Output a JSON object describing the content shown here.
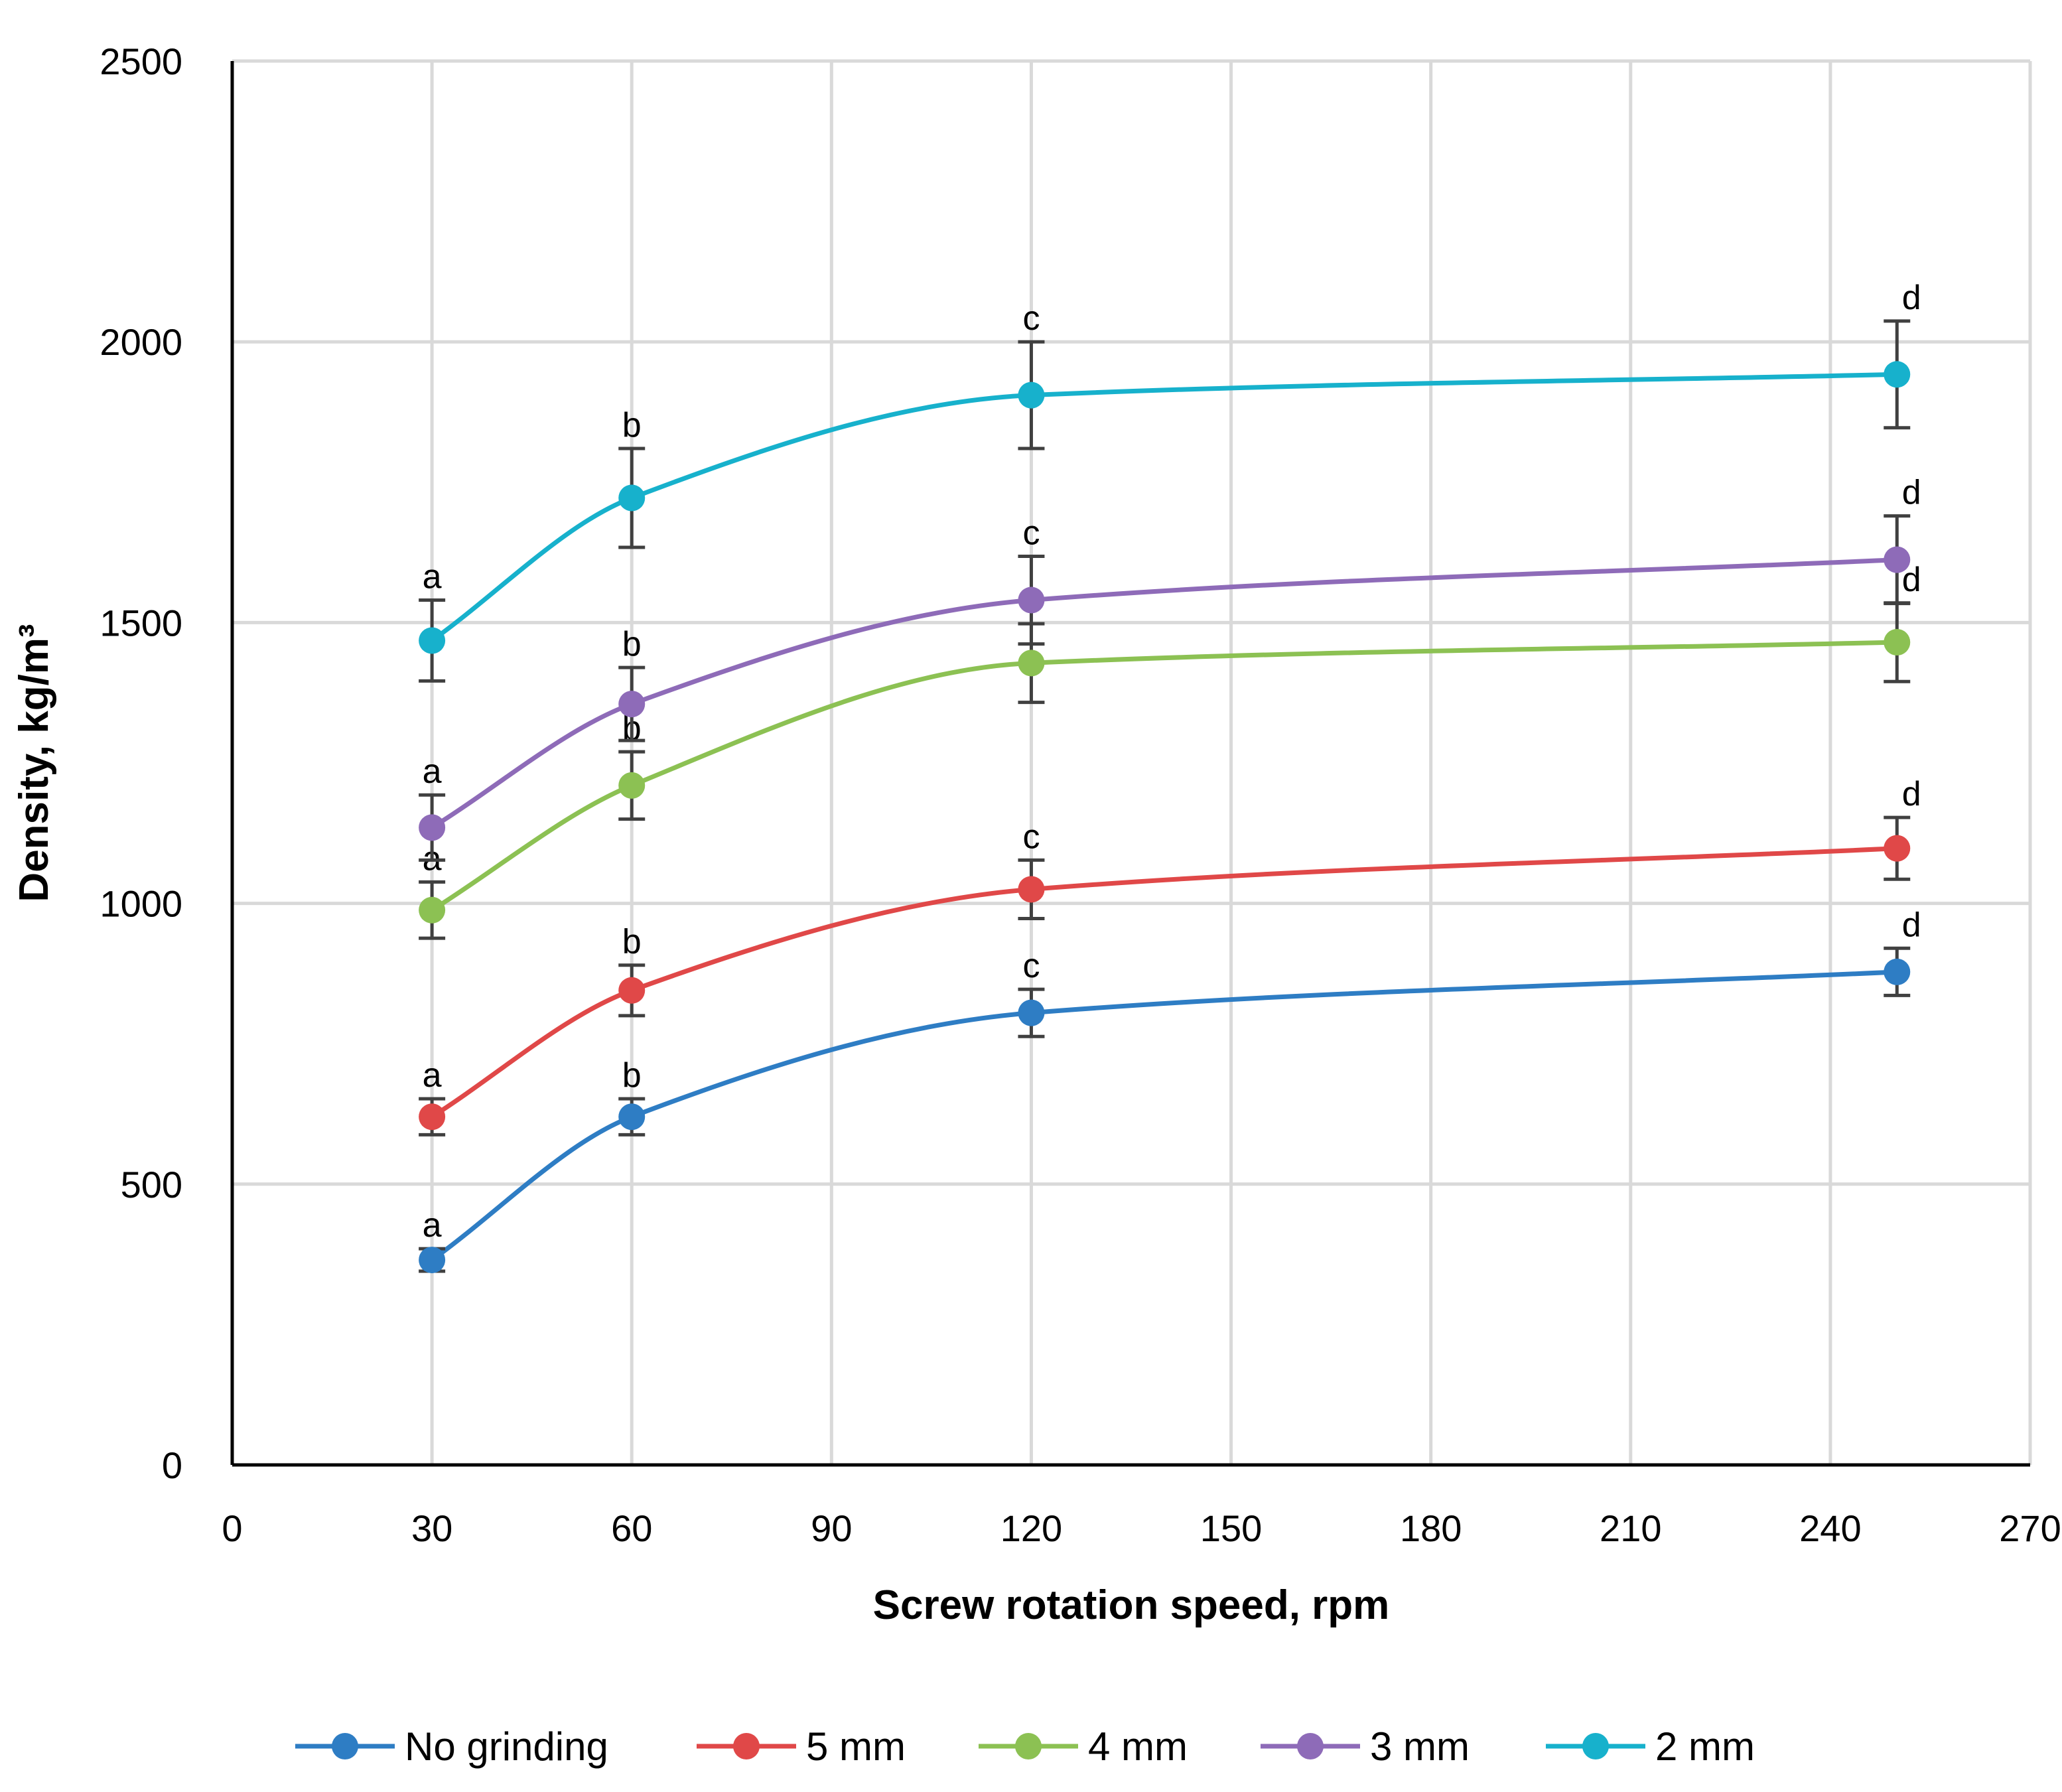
{
  "chart_data": {
    "type": "line",
    "title": "",
    "xlabel": "Screw rotation speed, rpm",
    "ylabel": "Density, kg/m³",
    "xlim": [
      0,
      270
    ],
    "ylim": [
      0,
      2500
    ],
    "xticks": [
      0,
      30,
      60,
      90,
      120,
      150,
      180,
      210,
      240,
      270
    ],
    "yticks": [
      0,
      500,
      1000,
      1500,
      2000,
      2500
    ],
    "grid": true,
    "legend_position": "bottom",
    "x": [
      30,
      60,
      120,
      250
    ],
    "series": [
      {
        "name": "No grinding",
        "color": "#2E7DC4",
        "values": [
          365,
          620,
          805,
          878
        ],
        "errors": [
          20,
          32,
          42,
          42
        ],
        "sig_labels": [
          "a",
          "b",
          "c",
          "d"
        ]
      },
      {
        "name": "5 mm",
        "color": "#E04848",
        "values": [
          620,
          845,
          1025,
          1098
        ],
        "errors": [
          32,
          45,
          52,
          55
        ],
        "sig_labels": [
          "a",
          "b",
          "c",
          "d"
        ]
      },
      {
        "name": "4 mm",
        "color": "#8CC153",
        "values": [
          988,
          1210,
          1428,
          1465
        ],
        "errors": [
          50,
          60,
          70,
          70
        ],
        "sig_labels": [
          "a",
          "b",
          "c",
          "d"
        ]
      },
      {
        "name": "3 mm",
        "color": "#8E6BB8",
        "values": [
          1135,
          1355,
          1540,
          1612
        ],
        "errors": [
          58,
          65,
          78,
          78
        ],
        "sig_labels": [
          "a",
          "b",
          "c",
          "d"
        ]
      },
      {
        "name": "2 mm",
        "color": "#17B1CC",
        "values": [
          1468,
          1722,
          1905,
          1942
        ],
        "errors": [
          72,
          88,
          95,
          95
        ],
        "sig_labels": [
          "a",
          "b",
          "c",
          "d"
        ]
      }
    ]
  }
}
